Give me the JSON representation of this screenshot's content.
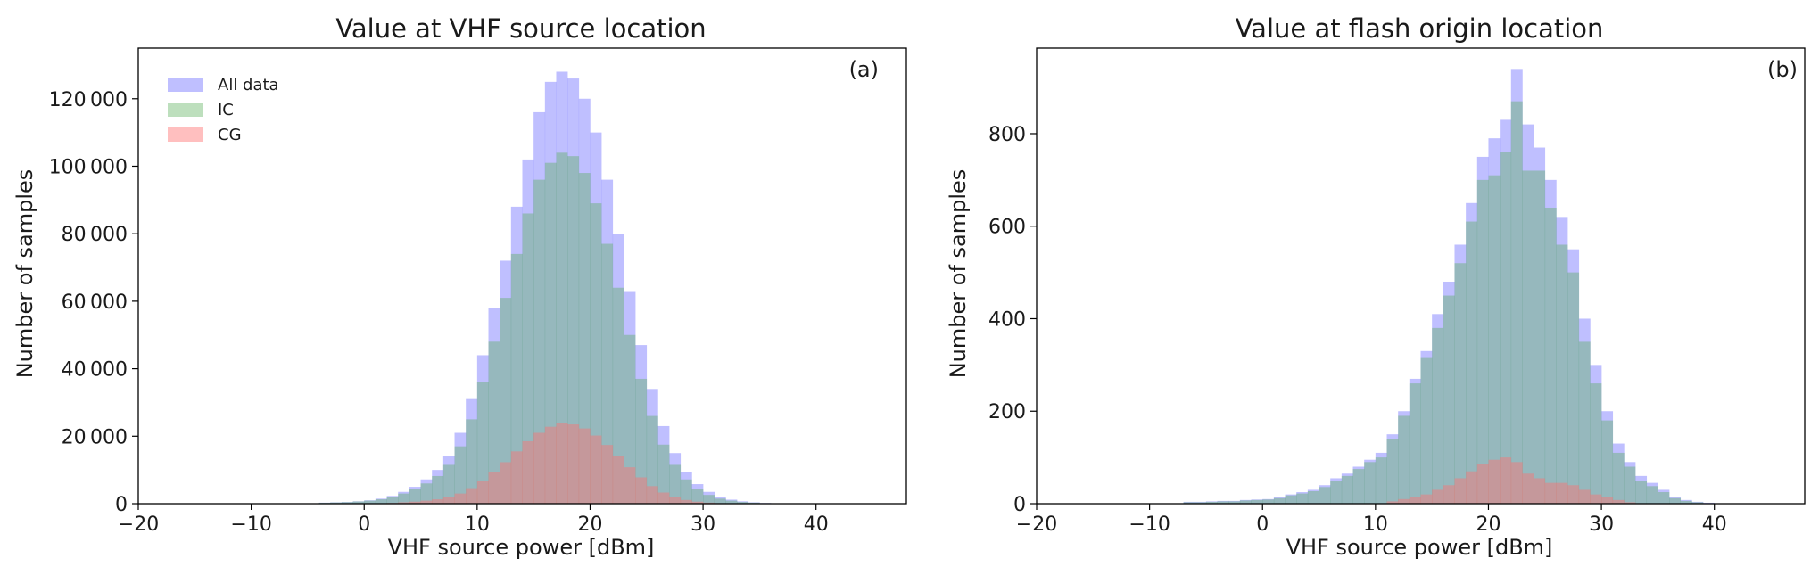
{
  "chart_data": [
    {
      "type": "histogram",
      "panel_label": "(a)",
      "title": "Value at VHF source location",
      "xlabel": "VHF source power [dBm]",
      "ylabel": "Number of samples",
      "xlim": [
        -20,
        48
      ],
      "ylim": [
        0,
        135000
      ],
      "xticks": [
        -20,
        -10,
        0,
        10,
        20,
        30,
        40
      ],
      "xtick_labels": [
        "−20",
        "−10",
        "0",
        "10",
        "20",
        "30",
        "40"
      ],
      "yticks": [
        0,
        20000,
        40000,
        60000,
        80000,
        100000,
        120000
      ],
      "ytick_labels": [
        "0",
        "20 000",
        "40 000",
        "60 000",
        "80 000",
        "100 000",
        "120 000"
      ],
      "grid": false,
      "legend_position": "top-left",
      "bin_start": -4,
      "bin_width": 1,
      "series": [
        {
          "name": "All data",
          "color": "#8080ff",
          "opacity": 0.5,
          "values": [
            300,
            400,
            500,
            700,
            1000,
            1500,
            2300,
            3500,
            5000,
            7200,
            10000,
            14000,
            21000,
            31000,
            44000,
            58000,
            72000,
            88000,
            102000,
            116000,
            125000,
            128000,
            126000,
            120000,
            110000,
            96000,
            80000,
            63000,
            47000,
            34000,
            23000,
            15000,
            9500,
            5800,
            3500,
            2000,
            1200,
            700,
            400,
            200
          ]
        },
        {
          "name": "IC",
          "color": "#5aaf5a",
          "opacity": 0.4,
          "values": [
            250,
            350,
            450,
            650,
            900,
            1300,
            2000,
            3000,
            4300,
            6000,
            8200,
            11500,
            17000,
            25000,
            36000,
            48000,
            61000,
            74000,
            86000,
            96000,
            101000,
            104000,
            103000,
            98000,
            89000,
            77000,
            64000,
            50000,
            37000,
            26000,
            17500,
            11500,
            7200,
            4400,
            2600,
            1500,
            900,
            500,
            300,
            150
          ]
        },
        {
          "name": "CG",
          "color": "#ff7070",
          "opacity": 0.45,
          "values": [
            0,
            0,
            0,
            0,
            0,
            0,
            200,
            400,
            600,
            900,
            1300,
            2000,
            3000,
            4600,
            6700,
            9300,
            12300,
            15500,
            18500,
            21000,
            22800,
            23800,
            23500,
            22300,
            20200,
            17400,
            14200,
            10800,
            7800,
            5200,
            3300,
            2000,
            1100,
            600,
            300,
            150,
            0,
            0,
            0,
            0
          ]
        }
      ]
    },
    {
      "type": "histogram",
      "panel_label": "(b)",
      "title": "Value at flash origin location",
      "xlabel": "VHF source power [dBm]",
      "ylabel": "Number of samples",
      "xlim": [
        -20,
        48
      ],
      "ylim": [
        0,
        985
      ],
      "xticks": [
        -20,
        -10,
        0,
        10,
        20,
        30,
        40
      ],
      "xtick_labels": [
        "−20",
        "−10",
        "0",
        "10",
        "20",
        "30",
        "40"
      ],
      "yticks": [
        0,
        200,
        400,
        600,
        800
      ],
      "ytick_labels": [
        "0",
        "200",
        "400",
        "600",
        "800"
      ],
      "grid": false,
      "bin_start": -7,
      "bin_width": 1,
      "series": [
        {
          "name": "All data",
          "color": "#8080ff",
          "opacity": 0.5,
          "values": [
            4,
            4,
            5,
            6,
            6,
            8,
            9,
            10,
            14,
            20,
            25,
            30,
            40,
            55,
            65,
            80,
            95,
            110,
            150,
            200,
            270,
            330,
            410,
            480,
            560,
            650,
            750,
            790,
            830,
            940,
            820,
            770,
            700,
            620,
            550,
            400,
            300,
            200,
            130,
            90,
            60,
            45,
            30,
            15,
            8,
            4,
            2
          ]
        },
        {
          "name": "IC",
          "color": "#5aaf5a",
          "opacity": 0.4,
          "values": [
            3,
            3,
            4,
            5,
            5,
            7,
            8,
            9,
            12,
            18,
            22,
            27,
            36,
            50,
            60,
            75,
            90,
            100,
            140,
            190,
            260,
            315,
            380,
            450,
            520,
            610,
            700,
            710,
            760,
            870,
            720,
            720,
            640,
            560,
            500,
            350,
            260,
            180,
            110,
            80,
            50,
            38,
            25,
            12,
            6,
            3,
            1
          ]
        },
        {
          "name": "CG",
          "color": "#ff7070",
          "opacity": 0.45,
          "values": [
            0,
            0,
            0,
            0,
            0,
            0,
            0,
            0,
            0,
            0,
            0,
            0,
            0,
            0,
            0,
            0,
            0,
            0,
            5,
            10,
            15,
            20,
            30,
            40,
            55,
            70,
            85,
            95,
            100,
            90,
            65,
            55,
            45,
            45,
            40,
            30,
            20,
            15,
            8,
            3,
            1,
            0,
            0,
            0,
            0,
            0,
            0
          ]
        }
      ]
    }
  ]
}
